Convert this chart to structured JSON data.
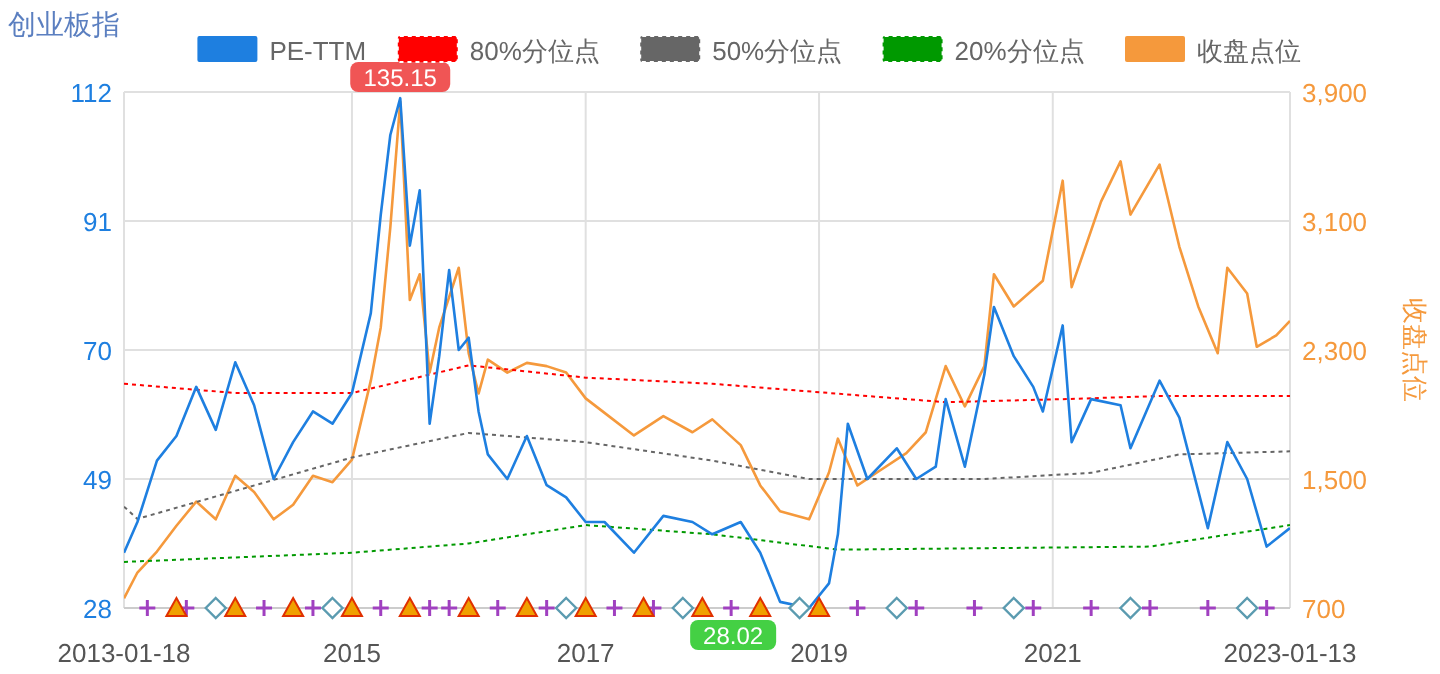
{
  "chart_data": {
    "type": "line",
    "title": "创业板指",
    "y2label": "收盘点位",
    "xlim": [
      "2013-01-18",
      "2023-01-13"
    ],
    "xticks": [
      "2013-01-18",
      "2015",
      "2017",
      "2019",
      "2021",
      "2023-01-13"
    ],
    "ylim": [
      28,
      112
    ],
    "yticks": [
      28,
      49,
      70,
      91,
      112
    ],
    "y2lim": [
      700,
      3900
    ],
    "y2ticks": [
      {
        "value": 700,
        "label": "700"
      },
      {
        "value": 1500,
        "label": "1,500"
      },
      {
        "value": 2300,
        "label": "2,300"
      },
      {
        "value": 3100,
        "label": "3,100"
      },
      {
        "value": 3900,
        "label": "3,900"
      }
    ],
    "grid": true,
    "legend": "top",
    "marker": "none",
    "annotations": [
      "135.15",
      {
        "text": "28.02",
        "x": "2018-12",
        "y": 28
      }
    ],
    "series": [
      {
        "name": "PE-TTM",
        "color": "#1e7fe0",
        "x": [
          "2013-01-18",
          "2013-03",
          "2013-05",
          "2013-07",
          "2013-09",
          "2013-11",
          "2014-01",
          "2014-03",
          "2014-05",
          "2014-07",
          "2014-09",
          "2014-11",
          "2015-01",
          "2015-03",
          "2015-04",
          "2015-05",
          "2015-06",
          "2015-07",
          "2015-08",
          "2015-09",
          "2015-10",
          "2015-11",
          "2015-12",
          "2016-01",
          "2016-02",
          "2016-03",
          "2016-05",
          "2016-07",
          "2016-09",
          "2016-11",
          "2017-01",
          "2017-03",
          "2017-06",
          "2017-09",
          "2017-12",
          "2018-02",
          "2018-05",
          "2018-07",
          "2018-09",
          "2018-12",
          "2019-02",
          "2019-03",
          "2019-04",
          "2019-06",
          "2019-09",
          "2019-11",
          "2020-01",
          "2020-02",
          "2020-04",
          "2020-06",
          "2020-07",
          "2020-09",
          "2020-11",
          "2020-12",
          "2021-02",
          "2021-03",
          "2021-05",
          "2021-08",
          "2021-09",
          "2021-12",
          "2022-02",
          "2022-05",
          "2022-07",
          "2022-09",
          "2022-11",
          "2023-01-13"
        ],
        "values": [
          37,
          42,
          52,
          56,
          64,
          57,
          68,
          61,
          49,
          55,
          60,
          58,
          63,
          76,
          92,
          105,
          111,
          87,
          96,
          58,
          69,
          83,
          70,
          72,
          60,
          53,
          49,
          56,
          48,
          46,
          42,
          42,
          37,
          43,
          42,
          40,
          42,
          37,
          29,
          28,
          32,
          40,
          58,
          49,
          54,
          49,
          51,
          62,
          51,
          66,
          77,
          69,
          64,
          60,
          74,
          55,
          62,
          61,
          54,
          65,
          59,
          41,
          55,
          49,
          38,
          41
        ]
      },
      {
        "name": "80%分位点",
        "color": "#ff0000",
        "line_style": "dotted",
        "x": [
          "2013-01-18",
          "2014-01",
          "2015-01",
          "2016-01",
          "2017-01",
          "2018-02",
          "2020-02",
          "2021-02",
          "2021-12",
          "2023-01-13"
        ],
        "values": [
          64.5,
          63,
          63,
          67.5,
          65.5,
          64.5,
          61.5,
          62,
          62.5,
          62.5
        ]
      },
      {
        "name": "50%分位点",
        "color": "#666666",
        "line_style": "dotted",
        "x": [
          "2013-01-18",
          "2013-03",
          "2015-01",
          "2016-01",
          "2017-01",
          "2018-02",
          "2018-12",
          "2020-06",
          "2021-05",
          "2022-02",
          "2023-01-13"
        ],
        "values": [
          44.5,
          42.5,
          52.5,
          56.5,
          55,
          52,
          49,
          49,
          50,
          53,
          53.5
        ]
      },
      {
        "name": "20%分位点",
        "color": "#009900",
        "line_style": "dotted",
        "x": [
          "2013-01-18",
          "2015-01",
          "2016-01",
          "2017-01",
          "2018-02",
          "2019-03",
          "2021-11",
          "2023-01-13"
        ],
        "values": [
          35.5,
          37,
          38.5,
          41.5,
          40,
          37.5,
          38,
          41.5
        ]
      },
      {
        "name": "收盘点位",
        "color": "#f5993c",
        "axis": "y2",
        "x": [
          "2013-01-18",
          "2013-03",
          "2013-05",
          "2013-07",
          "2013-09",
          "2013-11",
          "2014-01",
          "2014-03",
          "2014-05",
          "2014-07",
          "2014-09",
          "2014-11",
          "2015-01",
          "2015-03",
          "2015-04",
          "2015-05",
          "2015-06",
          "2015-07",
          "2015-08",
          "2015-09",
          "2015-10",
          "2015-12",
          "2016-01",
          "2016-02",
          "2016-03",
          "2016-05",
          "2016-07",
          "2016-09",
          "2016-11",
          "2017-01",
          "2017-03",
          "2017-06",
          "2017-09",
          "2017-12",
          "2018-02",
          "2018-05",
          "2018-07",
          "2018-09",
          "2018-12",
          "2019-02",
          "2019-03",
          "2019-05",
          "2019-07",
          "2019-10",
          "2019-12",
          "2020-02",
          "2020-04",
          "2020-06",
          "2020-07",
          "2020-09",
          "2020-12",
          "2021-02",
          "2021-03",
          "2021-06",
          "2021-08",
          "2021-09",
          "2021-12",
          "2022-02",
          "2022-04",
          "2022-06",
          "2022-07",
          "2022-09",
          "2022-10",
          "2022-12",
          "2023-01-13"
        ],
        "values": [
          760,
          920,
          1050,
          1210,
          1360,
          1250,
          1520,
          1420,
          1250,
          1340,
          1520,
          1480,
          1620,
          2110,
          2440,
          3060,
          3840,
          2610,
          2770,
          2160,
          2440,
          2810,
          2280,
          2030,
          2240,
          2160,
          2220,
          2200,
          2160,
          2000,
          1910,
          1770,
          1890,
          1790,
          1870,
          1710,
          1460,
          1300,
          1250,
          1540,
          1750,
          1460,
          1540,
          1660,
          1790,
          2200,
          1950,
          2200,
          2770,
          2570,
          2730,
          3350,
          2690,
          3220,
          3470,
          3140,
          3450,
          2940,
          2570,
          2280,
          2810,
          2650,
          2320,
          2390,
          2480
        ]
      },
      {
        "type": "scatter",
        "marker": "cross",
        "color": "#a040c0",
        "x": [
          "2013-04",
          "2013-08",
          "2014-04",
          "2014-09",
          "2015-04",
          "2015-09",
          "2015-11",
          "2016-04",
          "2016-09",
          "2017-04",
          "2017-08",
          "2018-04",
          "2019-05",
          "2019-11",
          "2020-05",
          "2020-11",
          "2021-05",
          "2021-11",
          "2022-05",
          "2022-11"
        ],
        "values": [
          28,
          28,
          28,
          28,
          28,
          28,
          28,
          28,
          28,
          28,
          28,
          28,
          28,
          28,
          28,
          28,
          28,
          28,
          28,
          28
        ]
      },
      {
        "type": "scatter",
        "marker": "triangle",
        "color": "#f0a000",
        "x": [
          "2013-07",
          "2014-01",
          "2014-07",
          "2015-01",
          "2015-07",
          "2016-01",
          "2016-07",
          "2017-01",
          "2017-07",
          "2018-01",
          "2018-07",
          "2019-01"
        ],
        "values": [
          28,
          28,
          28,
          28,
          28,
          28,
          28,
          28,
          28,
          28,
          28,
          28
        ]
      },
      {
        "type": "scatter",
        "marker": "diamond",
        "color": "#5b9bb0",
        "x": [
          "2013-11",
          "2014-11",
          "2016-11",
          "2017-11",
          "2018-11",
          "2019-09",
          "2020-09",
          "2021-09",
          "2022-09"
        ],
        "values": [
          28,
          28,
          28,
          28,
          28,
          28,
          28,
          28,
          28
        ]
      }
    ]
  }
}
